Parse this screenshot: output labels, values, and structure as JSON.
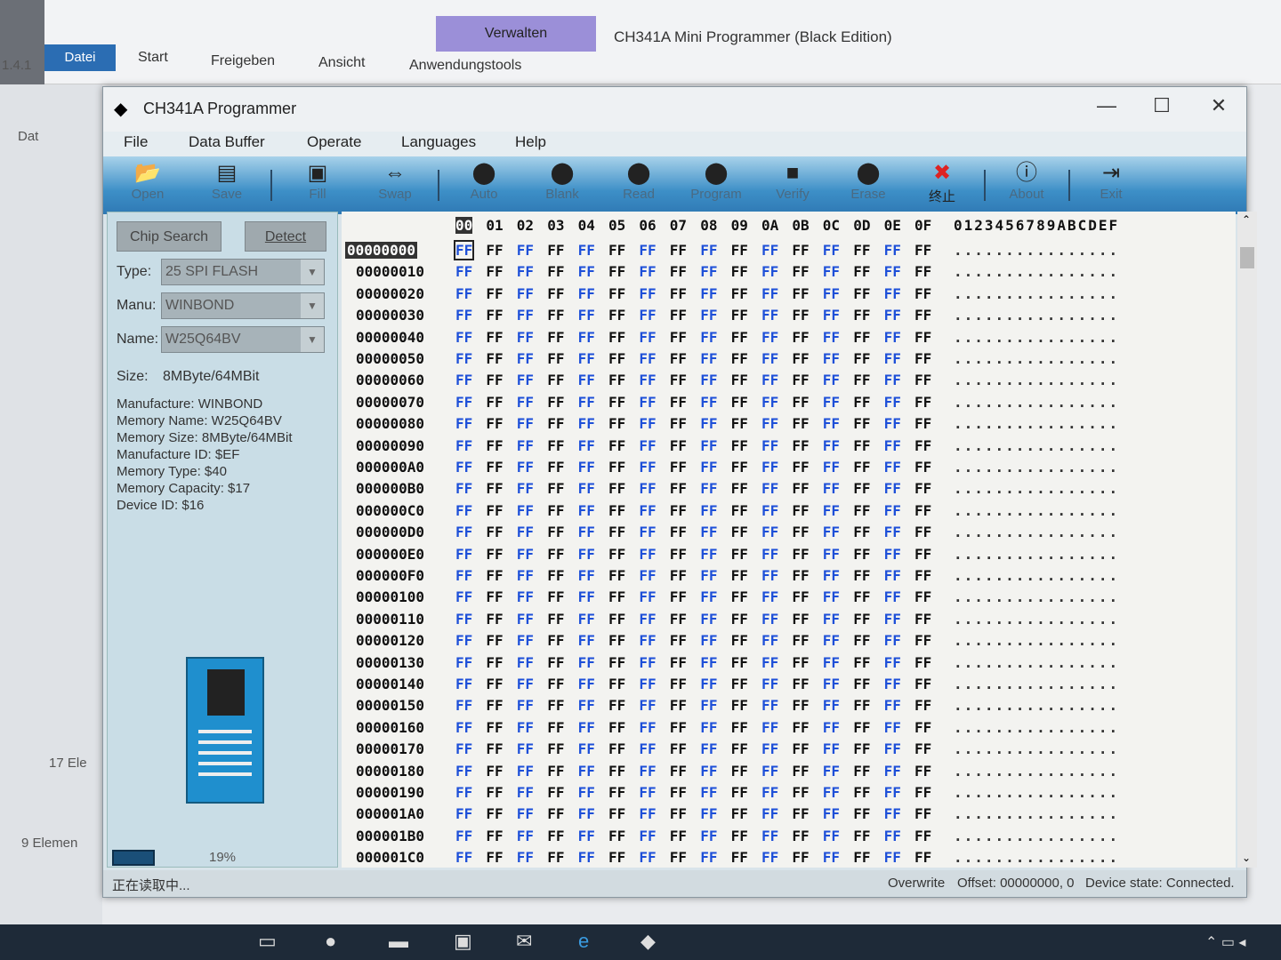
{
  "background_window": {
    "quick_title": "Verwalten",
    "title": "CH341A Mini Programmer (Black Edition)",
    "tabs": [
      "Datei",
      "Start",
      "Freigeben",
      "Ansicht",
      "Anwendungstools"
    ],
    "left_fragments": [
      "1.4.1",
      "Dat",
      "17 Ele",
      "9 Elemen"
    ]
  },
  "window": {
    "title": "CH341A Programmer",
    "controls": [
      "—",
      "☐",
      "✕"
    ]
  },
  "menu": [
    "File",
    "Data Buffer",
    "Operate",
    "Languages",
    "Help"
  ],
  "toolbar": [
    {
      "label": "Open",
      "icon": "open-folder-icon"
    },
    {
      "label": "Save",
      "icon": "save-icon"
    },
    {
      "label": "Fill",
      "icon": "fill-icon"
    },
    {
      "label": "Swap",
      "icon": "swap-icon"
    },
    {
      "label": "Auto",
      "icon": "auto-chip-icon"
    },
    {
      "label": "Blank",
      "icon": "blank-chip-icon"
    },
    {
      "label": "Read",
      "icon": "read-chip-icon"
    },
    {
      "label": "Program",
      "icon": "program-chip-icon"
    },
    {
      "label": "Verify",
      "icon": "verify-chip-icon"
    },
    {
      "label": "Erase",
      "icon": "erase-chip-icon"
    },
    {
      "label": "终止",
      "icon": "stop-icon"
    },
    {
      "label": "About",
      "icon": "info-icon"
    },
    {
      "label": "Exit",
      "icon": "exit-icon"
    }
  ],
  "left_panel": {
    "chip_search": "Chip Search",
    "detect": "Detect",
    "type_label": "Type:",
    "type_value": "25 SPI FLASH",
    "manu_label": "Manu:",
    "manu_value": "WINBOND",
    "name_label": "Name:",
    "name_value": "W25Q64BV",
    "size_label": "Size:",
    "size_value": "8MByte/64MBit",
    "info": [
      "Manufacture: WINBOND",
      "Memory Name: W25Q64BV",
      "Memory Size: 8MByte/64MBit",
      "Manufacture ID: $EF",
      "Memory Type: $40",
      "Memory Capacity: $17",
      "Device ID: $16"
    ],
    "progress_text": "19%",
    "progress": 19
  },
  "hex": {
    "columns": [
      "00",
      "01",
      "02",
      "03",
      "04",
      "05",
      "06",
      "07",
      "08",
      "09",
      "0A",
      "0B",
      "0C",
      "0D",
      "0E",
      "0F"
    ],
    "ascii_header": "0123456789ABCDEF",
    "addresses": [
      "00000000",
      "00000010",
      "00000020",
      "00000030",
      "00000040",
      "00000050",
      "00000060",
      "00000070",
      "00000080",
      "00000090",
      "000000A0",
      "000000B0",
      "000000C0",
      "000000D0",
      "000000E0",
      "000000F0",
      "00000100",
      "00000110",
      "00000120",
      "00000130",
      "00000140",
      "00000150",
      "00000160",
      "00000170",
      "00000180",
      "00000190",
      "000001A0",
      "000001B0",
      "000001C0"
    ],
    "byte_value": "FF",
    "ascii_row": "................"
  },
  "status": {
    "message": "正在读取中...",
    "mode": "Overwrite",
    "offset": "Offset: 00000000, 0",
    "device_state": "Device state: Connected."
  },
  "colors": {
    "toolbar": "#3d8fc7",
    "even_column": "#1d4fd8",
    "odd_column": "#111111"
  }
}
